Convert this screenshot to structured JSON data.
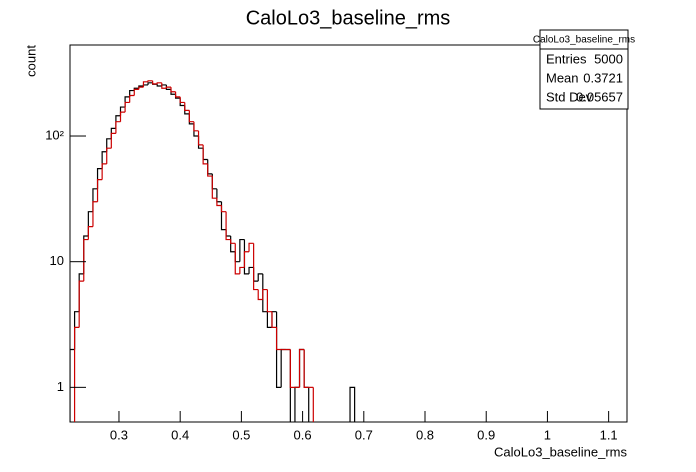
{
  "chart_data": {
    "type": "histogram",
    "title": "CaloLo3_baseline_rms",
    "x_label": "CaloLo3_baseline_rms",
    "y_label": "count",
    "log_y": true,
    "grid": false,
    "xlim": [
      0.22,
      1.13
    ],
    "ylim": [
      0.53,
      530
    ],
    "xticks": [
      0.3,
      0.4,
      0.5,
      0.6,
      0.7,
      0.8,
      0.9,
      1,
      1.1
    ],
    "yticks": [
      1,
      10,
      {
        "value": 100,
        "label": "10²"
      }
    ],
    "bins": [
      0.22,
      0.2275,
      0.235,
      0.2425,
      0.25,
      0.2575,
      0.265,
      0.2725,
      0.28,
      0.2875,
      0.295,
      0.3025,
      0.31,
      0.3175,
      0.325,
      0.3325,
      0.34,
      0.3475,
      0.355,
      0.3625,
      0.37,
      0.3775,
      0.385,
      0.3925,
      0.4,
      0.4075,
      0.415,
      0.4225,
      0.43,
      0.4375,
      0.445,
      0.4525,
      0.46,
      0.4675,
      0.475,
      0.4825,
      0.49,
      0.4975,
      0.505,
      0.5125,
      0.52,
      0.5275,
      0.535,
      0.5425,
      0.55,
      0.5575,
      0.565,
      0.5725,
      0.58,
      0.5875,
      0.595,
      0.6025,
      0.61,
      0.6175,
      0.625,
      0.6325,
      0.64,
      0.6475,
      0.655,
      0.6625,
      0.67,
      0.6775,
      0.685
    ],
    "series": [
      {
        "color": "#000000",
        "values": [
          2,
          4,
          8,
          16,
          25,
          38,
          55,
          75,
          95,
          115,
          145,
          170,
          205,
          230,
          240,
          250,
          255,
          265,
          258,
          250,
          255,
          235,
          215,
          200,
          175,
          150,
          125,
          100,
          80,
          65,
          50,
          38,
          30,
          18,
          16,
          12,
          10,
          15,
          8,
          9,
          7,
          8,
          4,
          3,
          4,
          1,
          2,
          2,
          0,
          1,
          2,
          1,
          0,
          0,
          0,
          0,
          0,
          0,
          0,
          0,
          0,
          1
        ]
      },
      {
        "color": "#cc0000",
        "values": [
          0,
          3,
          7,
          15,
          19,
          30,
          45,
          60,
          80,
          105,
          130,
          155,
          185,
          210,
          235,
          245,
          270,
          275,
          260,
          265,
          240,
          245,
          225,
          205,
          185,
          160,
          130,
          110,
          85,
          60,
          48,
          32,
          28,
          25,
          15,
          14,
          8,
          9,
          12,
          14,
          6,
          5,
          6,
          4,
          3,
          2,
          2,
          2,
          1,
          1,
          2,
          1,
          1,
          0,
          0,
          0,
          0,
          0,
          0,
          0,
          0,
          0
        ]
      }
    ],
    "stats": {
      "title": "CaloLo3_baseline_rms",
      "rows": [
        [
          "Entries",
          "5000"
        ],
        [
          "Mean",
          "0.3721"
        ],
        [
          "Std Dev",
          "0.05657"
        ]
      ]
    }
  }
}
